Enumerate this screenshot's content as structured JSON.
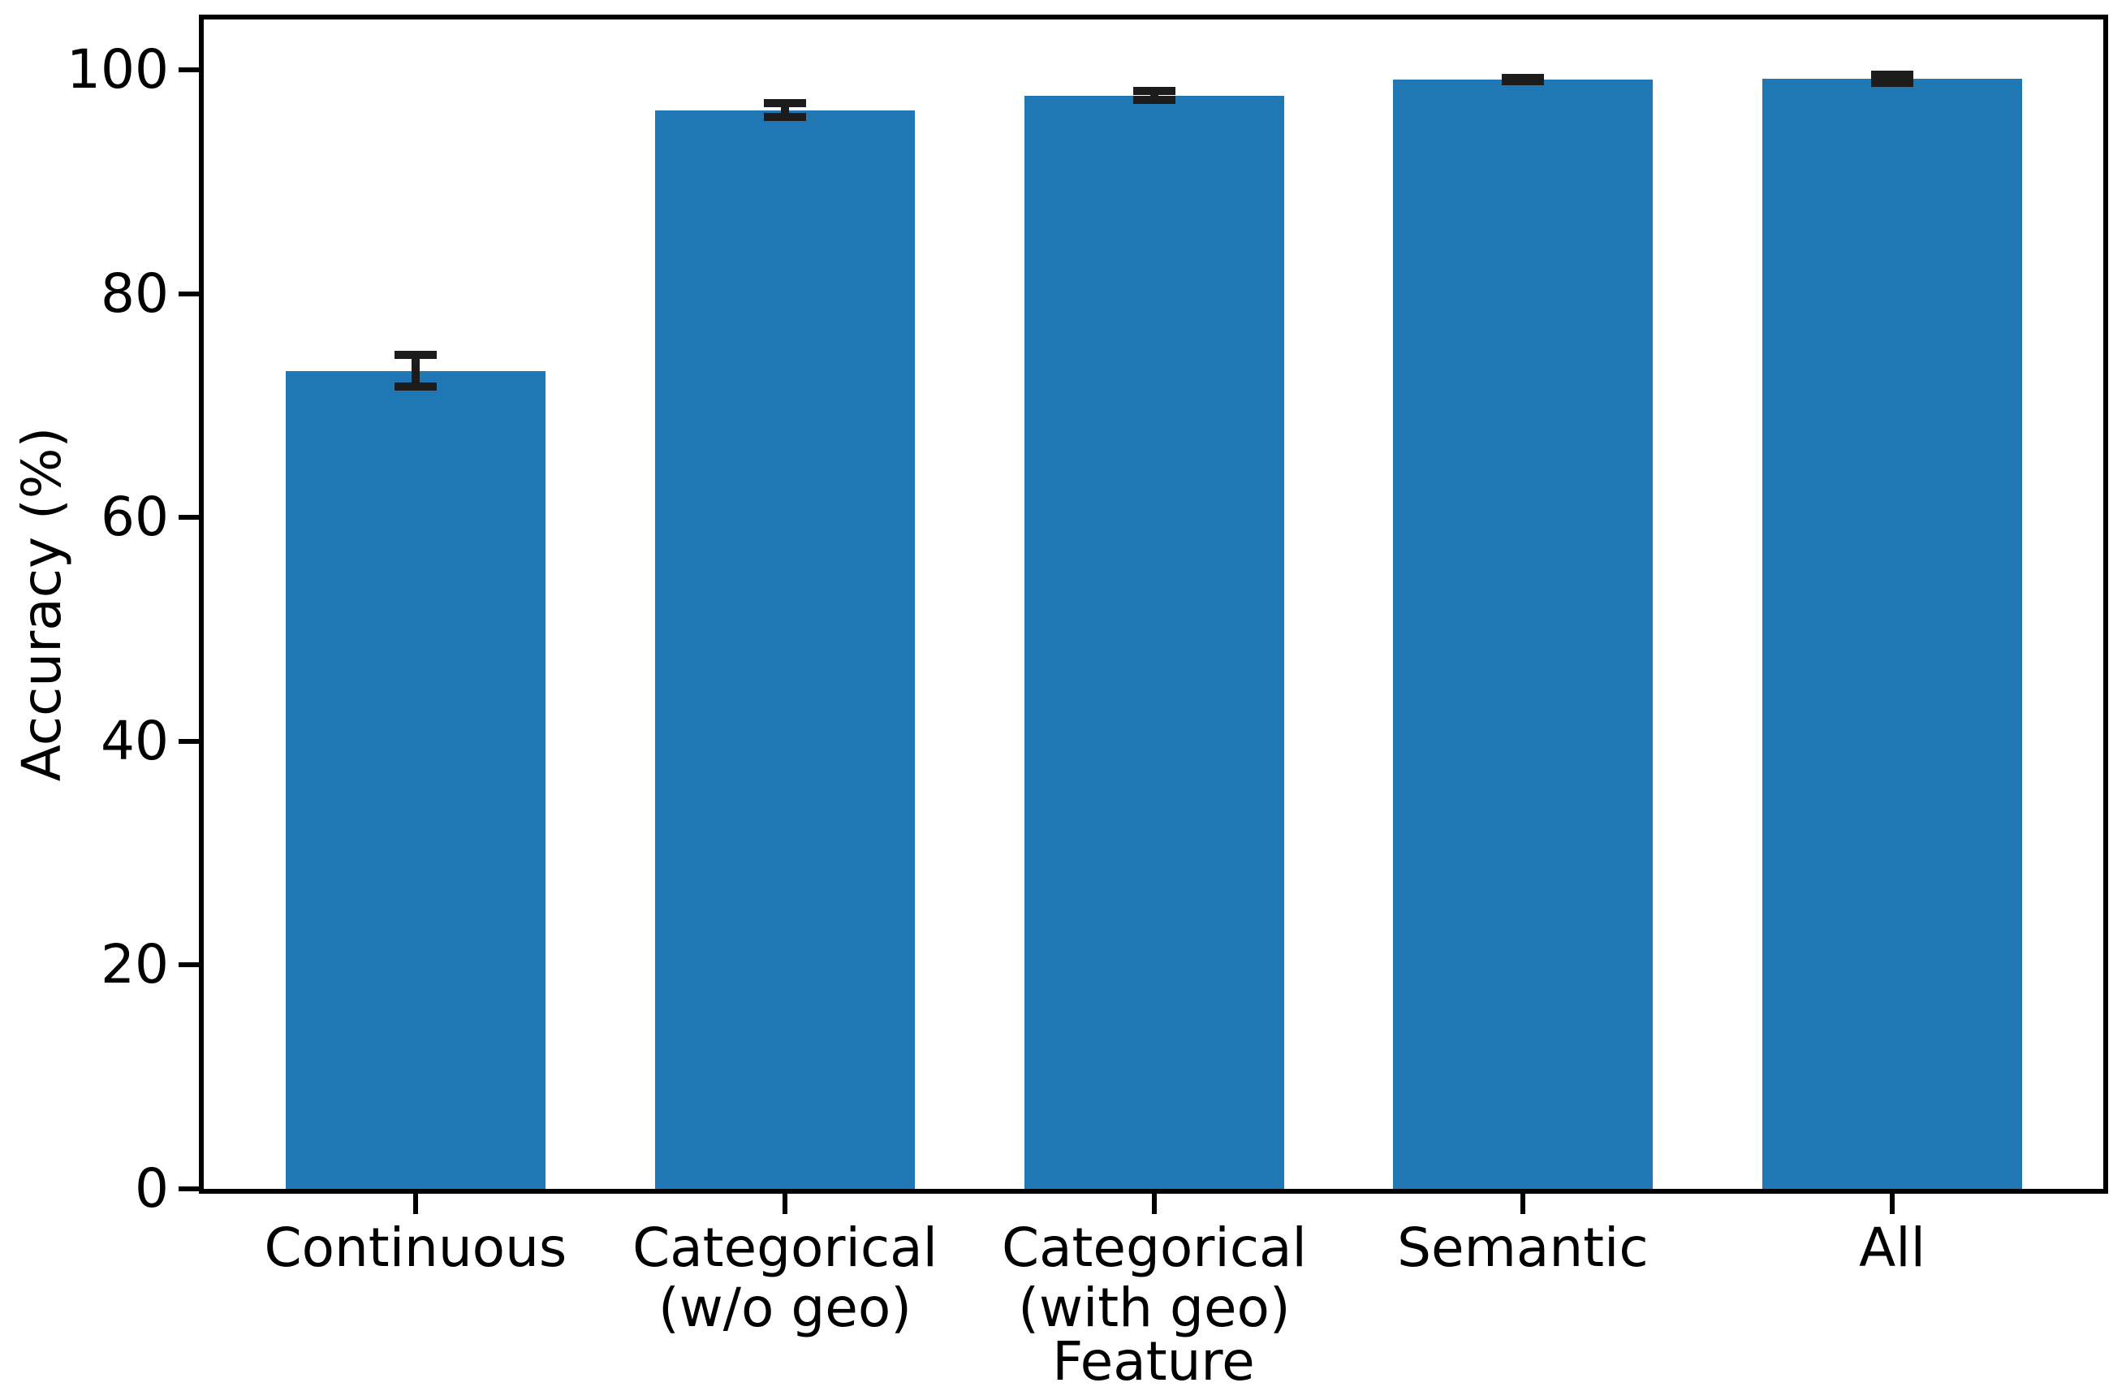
{
  "chart_data": {
    "type": "bar",
    "title": "",
    "xlabel": "Feature",
    "ylabel": "Accuracy (%)",
    "categories": [
      "Continuous",
      "Categorical\n(w/o geo)",
      "Categorical\n(with geo)",
      "Semantic",
      "All"
    ],
    "values": [
      73.1,
      96.4,
      97.7,
      99.1,
      99.2
    ],
    "error_bars": [
      1.4,
      0.6,
      0.4,
      0.15,
      0.35
    ],
    "yticks": [
      0,
      20,
      40,
      60,
      80,
      100
    ],
    "ylim": [
      0,
      104.5
    ],
    "grid": false,
    "legend_position": "none",
    "bar_color": "#1f77b4",
    "error_color": "#1c1c1c",
    "axis_color": "#000000",
    "background_color": "#ffffff"
  }
}
